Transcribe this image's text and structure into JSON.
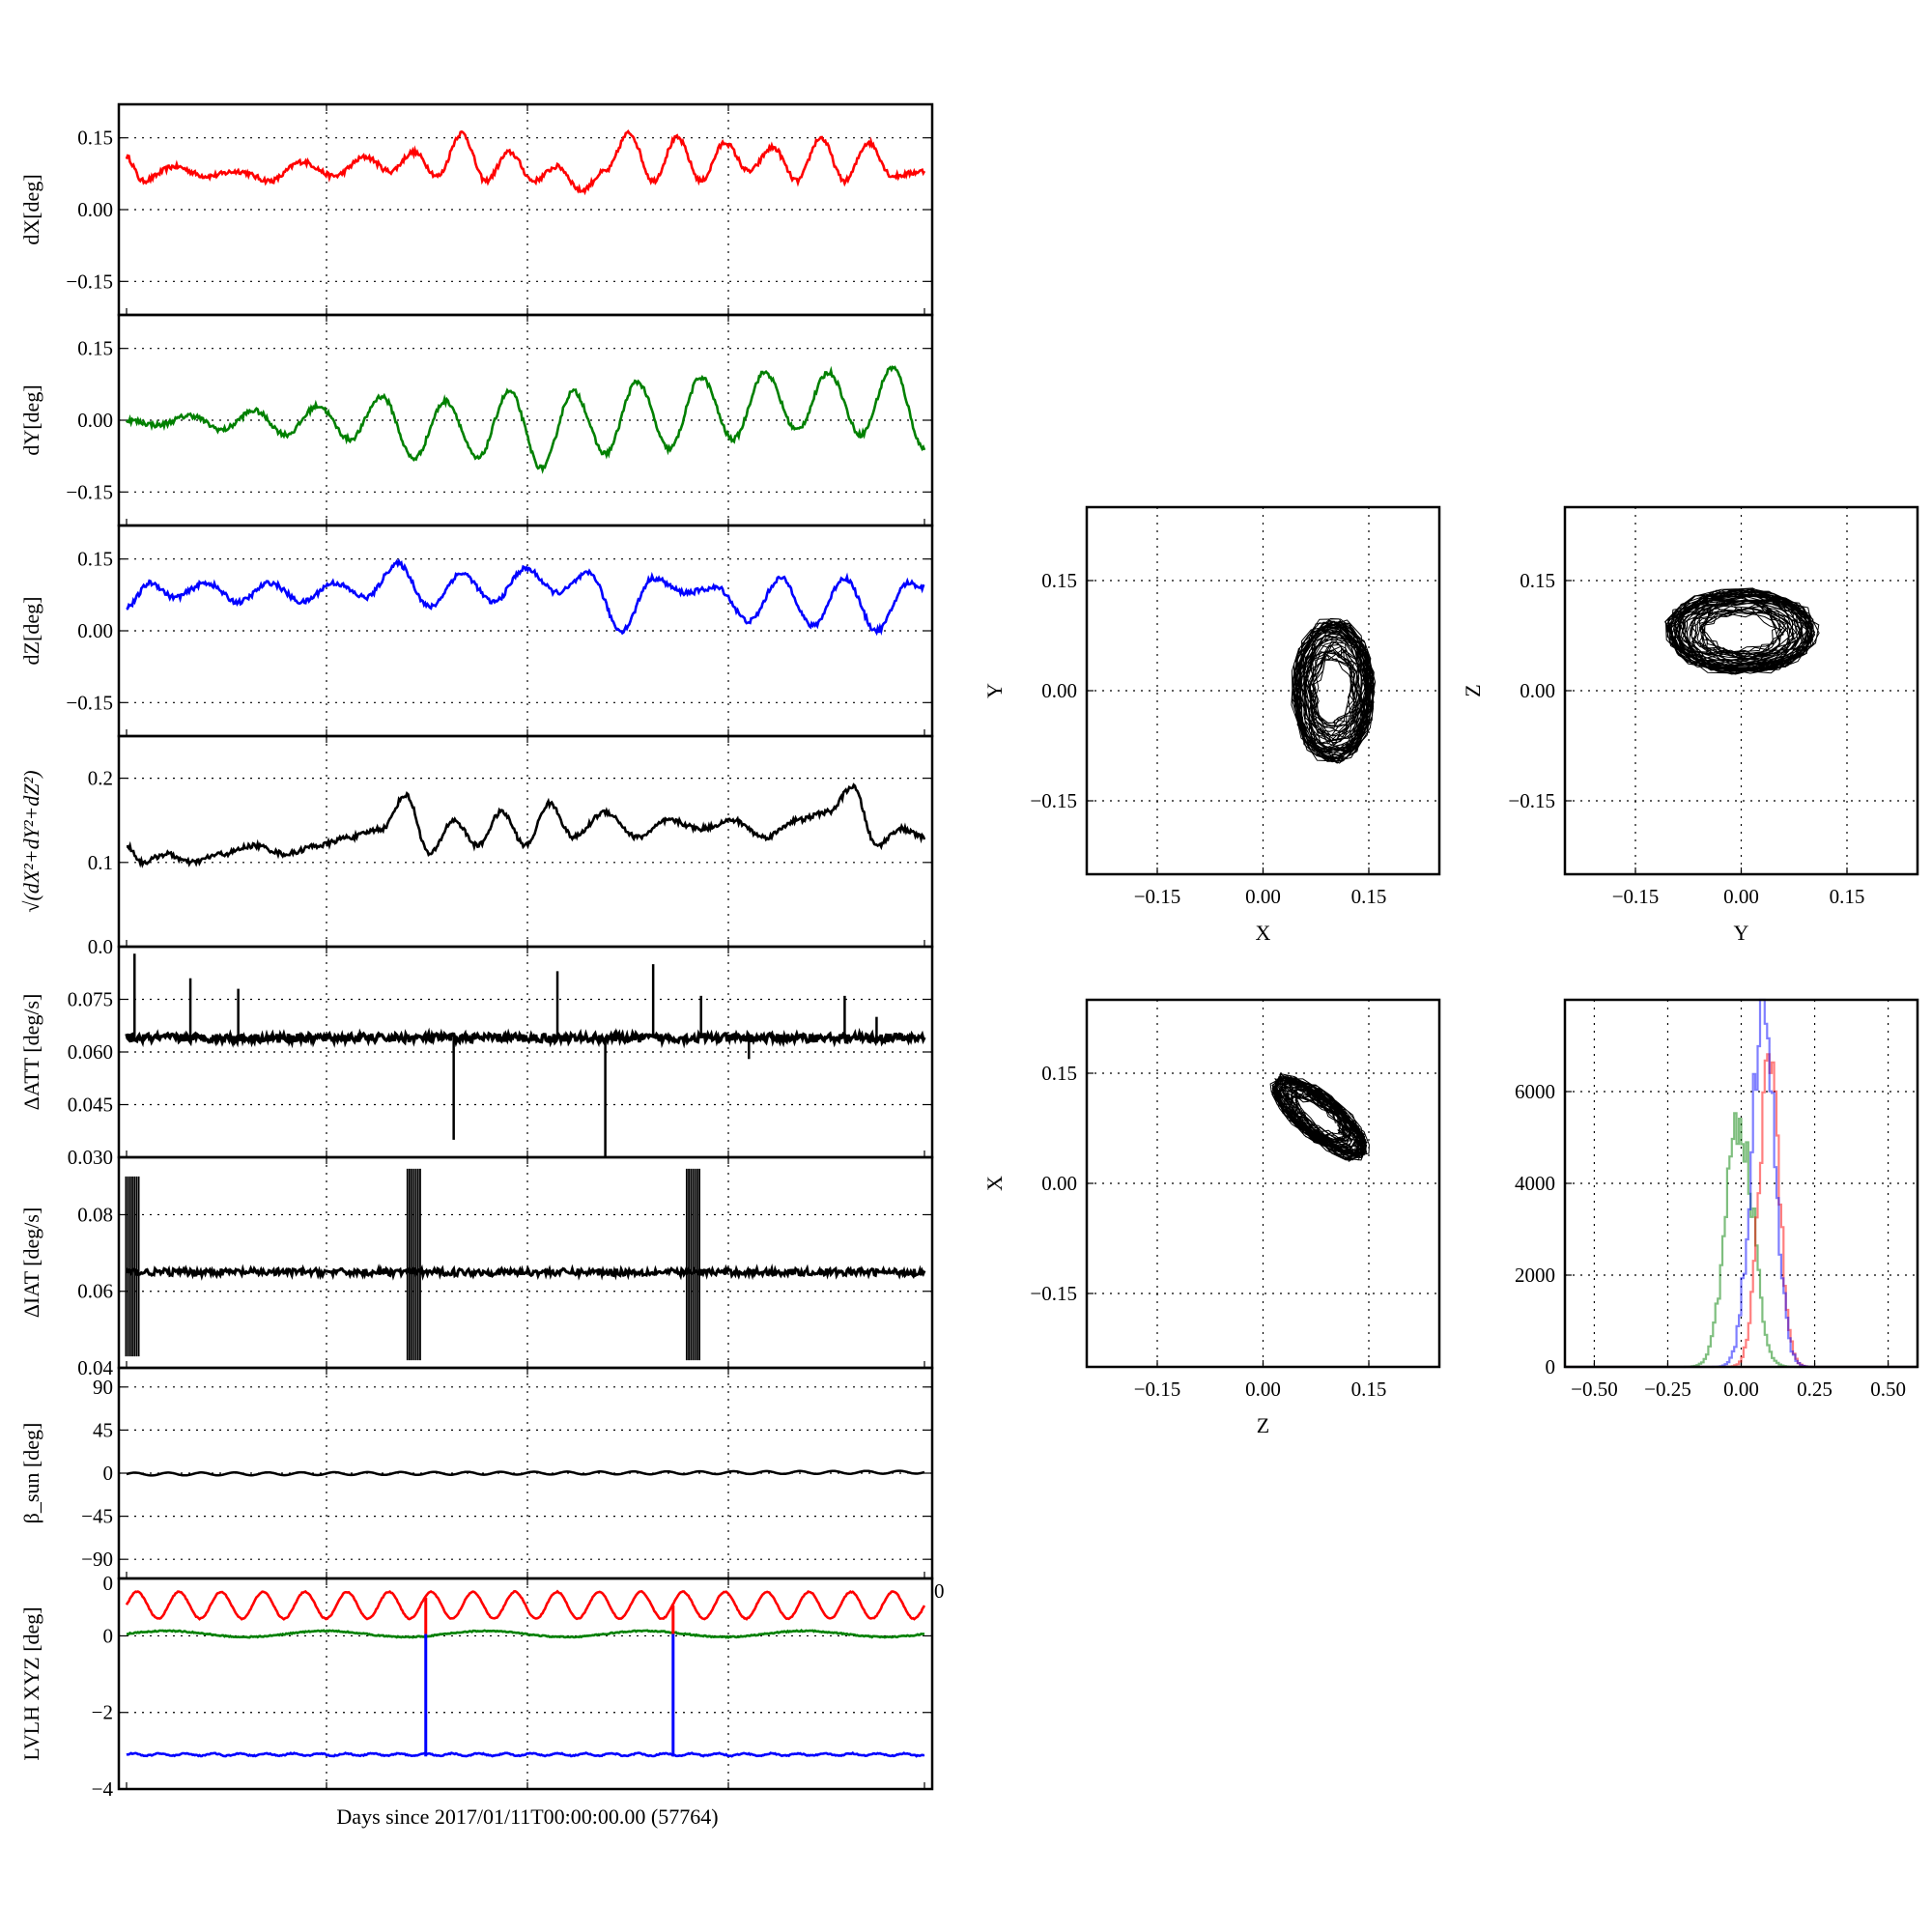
{
  "chart_data": {
    "xlabel": "Days since 2017/01/11T00:00:00.00 (57764)",
    "time_panels": [
      {
        "id": "dX",
        "type": "line",
        "ylabel": "dX[deg]",
        "ylim": [
          -0.22,
          0.22
        ],
        "yticks": [
          "−0.15",
          "0.00",
          "0.15"
        ],
        "ytick_values": [
          -0.15,
          0,
          0.15
        ],
        "grid": true,
        "series": [
          {
            "color": "#ff0000",
            "x": [
              0,
              0.02,
              0.06,
              0.1,
              0.14,
              0.18,
              0.22,
              0.26,
              0.3,
              0.33,
              0.36,
              0.39,
              0.42,
              0.45,
              0.48,
              0.51,
              0.54,
              0.57,
              0.6,
              0.63,
              0.66,
              0.69,
              0.72,
              0.75,
              0.78,
              0.81,
              0.84,
              0.87,
              0.9,
              0.93,
              0.96,
              1.0
            ],
            "y": [
              0.11,
              0.06,
              0.09,
              0.07,
              0.08,
              0.06,
              0.1,
              0.07,
              0.11,
              0.08,
              0.12,
              0.07,
              0.16,
              0.06,
              0.12,
              0.06,
              0.09,
              0.04,
              0.08,
              0.16,
              0.06,
              0.15,
              0.06,
              0.14,
              0.08,
              0.13,
              0.06,
              0.15,
              0.06,
              0.14,
              0.07,
              0.08
            ]
          }
        ]
      },
      {
        "id": "dY",
        "type": "line",
        "ylabel": "dY[deg]",
        "ylim": [
          -0.22,
          0.22
        ],
        "yticks": [
          "−0.15",
          "0.00",
          "0.15"
        ],
        "ytick_values": [
          -0.15,
          0,
          0.15
        ],
        "grid": true,
        "series": [
          {
            "color": "#008000",
            "x": [
              0,
              0.04,
              0.08,
              0.12,
              0.16,
              0.2,
              0.24,
              0.28,
              0.32,
              0.36,
              0.4,
              0.44,
              0.48,
              0.52,
              0.56,
              0.6,
              0.64,
              0.68,
              0.72,
              0.76,
              0.8,
              0.84,
              0.88,
              0.92,
              0.96,
              1.0
            ],
            "y": [
              0.0,
              -0.01,
              0.01,
              -0.02,
              0.02,
              -0.03,
              0.03,
              -0.04,
              0.05,
              -0.08,
              0.04,
              -0.08,
              0.06,
              -0.1,
              0.06,
              -0.07,
              0.08,
              -0.06,
              0.09,
              -0.04,
              0.1,
              -0.02,
              0.1,
              -0.03,
              0.11,
              -0.06
            ]
          }
        ]
      },
      {
        "id": "dZ",
        "type": "line",
        "ylabel": "dZ[deg]",
        "ylim": [
          -0.22,
          0.22
        ],
        "yticks": [
          "−0.15",
          "0.00",
          "0.15"
        ],
        "ytick_values": [
          -0.15,
          0,
          0.15
        ],
        "grid": true,
        "series": [
          {
            "color": "#0000ff",
            "x": [
              0,
              0.03,
              0.06,
              0.1,
              0.14,
              0.18,
              0.22,
              0.26,
              0.3,
              0.34,
              0.38,
              0.42,
              0.46,
              0.5,
              0.54,
              0.58,
              0.62,
              0.66,
              0.7,
              0.74,
              0.78,
              0.82,
              0.86,
              0.9,
              0.94,
              0.98,
              1.0
            ],
            "y": [
              0.05,
              0.1,
              0.07,
              0.1,
              0.06,
              0.1,
              0.06,
              0.1,
              0.07,
              0.14,
              0.05,
              0.12,
              0.06,
              0.13,
              0.08,
              0.12,
              0.0,
              0.11,
              0.08,
              0.09,
              0.02,
              0.11,
              0.01,
              0.11,
              0.0,
              0.1,
              0.09
            ]
          }
        ]
      },
      {
        "id": "mag",
        "type": "line",
        "ylabel": "√(dX²+dY²+dZ²)",
        "ylim": [
          0,
          0.25
        ],
        "yticks": [
          "0.0",
          "0.1",
          "0.2"
        ],
        "ytick_values": [
          0,
          0.1,
          0.2
        ],
        "grid": true,
        "series": [
          {
            "color": "#000000",
            "x": [
              0,
              0.02,
              0.05,
              0.08,
              0.12,
              0.16,
              0.2,
              0.24,
              0.28,
              0.32,
              0.35,
              0.38,
              0.41,
              0.44,
              0.47,
              0.5,
              0.53,
              0.56,
              0.6,
              0.64,
              0.68,
              0.72,
              0.76,
              0.8,
              0.84,
              0.88,
              0.91,
              0.94,
              0.97,
              1.0
            ],
            "y": [
              0.12,
              0.1,
              0.11,
              0.1,
              0.11,
              0.12,
              0.11,
              0.12,
              0.13,
              0.14,
              0.18,
              0.11,
              0.15,
              0.12,
              0.16,
              0.12,
              0.17,
              0.13,
              0.16,
              0.13,
              0.15,
              0.14,
              0.15,
              0.13,
              0.15,
              0.16,
              0.19,
              0.12,
              0.14,
              0.13
            ]
          }
        ]
      },
      {
        "id": "dATT",
        "type": "line",
        "ylabel": "ΔATT [deg/s]",
        "ylim": [
          0.03,
          0.09
        ],
        "yticks": [
          "0.030",
          "0.045",
          "0.060",
          "0.075"
        ],
        "ytick_values": [
          0.03,
          0.045,
          0.06,
          0.075
        ],
        "grid": true,
        "baseline": 0.064,
        "spikes": [
          {
            "x": 0.01,
            "y": 0.088
          },
          {
            "x": 0.08,
            "y": 0.081
          },
          {
            "x": 0.14,
            "y": 0.078
          },
          {
            "x": 0.41,
            "y": 0.035
          },
          {
            "x": 0.54,
            "y": 0.083
          },
          {
            "x": 0.6,
            "y": 0.03
          },
          {
            "x": 0.66,
            "y": 0.085
          },
          {
            "x": 0.72,
            "y": 0.076
          },
          {
            "x": 0.78,
            "y": 0.058
          },
          {
            "x": 0.9,
            "y": 0.076
          },
          {
            "x": 0.94,
            "y": 0.07
          }
        ],
        "series": [
          {
            "color": "#000000"
          }
        ]
      },
      {
        "id": "dIAT",
        "type": "line",
        "ylabel": "ΔIAT [deg/s]",
        "ylim": [
          0.04,
          0.095
        ],
        "yticks": [
          "0.04",
          "0.06",
          "0.08"
        ],
        "ytick_values": [
          0.04,
          0.06,
          0.08
        ],
        "grid": true,
        "baseline": 0.065,
        "bursts": [
          {
            "x": 0.0,
            "low": 0.043,
            "high": 0.09
          },
          {
            "x": 0.36,
            "low": 0.042,
            "high": 0.092
          },
          {
            "x": 0.71,
            "low": 0.042,
            "high": 0.092
          }
        ],
        "series": [
          {
            "color": "#000000"
          }
        ]
      },
      {
        "id": "beta",
        "type": "line",
        "ylabel": "β_sun [deg]",
        "ylim": [
          -110,
          110
        ],
        "yticks": [
          "−90",
          "−45",
          "0",
          "45",
          "90"
        ],
        "ytick_values": [
          -90,
          -45,
          0,
          45,
          90
        ],
        "grid": true,
        "series": [
          {
            "color": "#000000",
            "level": -1,
            "ripple": 1.5
          }
        ]
      },
      {
        "id": "lvlh",
        "type": "line",
        "ylabel": "LVLH XYZ [deg]",
        "ylim": [
          -4,
          1.5
        ],
        "yticks": [
          "−4",
          "−2",
          "0"
        ],
        "ytick_values": [
          -4,
          -2,
          0
        ],
        "grid": true,
        "left_top_label": "0",
        "right_top_label": "0",
        "series": [
          {
            "color": "#ff0000",
            "level": 0.8,
            "ripple": 0.35,
            "cycles": 19
          },
          {
            "color": "#008000",
            "level": 0.05,
            "ripple": 0.08,
            "cycles": 5
          },
          {
            "color": "#0000ff",
            "level": -3.1,
            "ripple": 0.03,
            "cycles": 30
          }
        ],
        "vlines": [
          {
            "x": 0.375,
            "top": 1.0,
            "bottom": -3.15
          },
          {
            "x": 0.685,
            "top": 0.8,
            "bottom": -3.15
          }
        ]
      }
    ],
    "scatter_panels": [
      {
        "id": "XY",
        "type": "scatter",
        "xlabel": "X",
        "ylabel": "Y",
        "xlim": [
          -0.25,
          0.25
        ],
        "ylim": [
          -0.25,
          0.25
        ],
        "ticks": [
          "−0.15",
          "0.00",
          "0.15"
        ],
        "tick_values": [
          -0.15,
          0,
          0.15
        ],
        "cloud": {
          "cx": 0.1,
          "cy": 0.0,
          "rx": 0.055,
          "ry": 0.095,
          "angle": 0
        }
      },
      {
        "id": "YZ",
        "type": "scatter",
        "xlabel": "Y",
        "ylabel": "Z",
        "xlim": [
          -0.25,
          0.25
        ],
        "ylim": [
          -0.25,
          0.25
        ],
        "ticks": [
          "−0.15",
          "0.00",
          "0.15"
        ],
        "tick_values": [
          -0.15,
          0,
          0.15
        ],
        "cloud": {
          "cx": 0.0,
          "cy": 0.08,
          "rx": 0.105,
          "ry": 0.055,
          "angle": 0
        }
      },
      {
        "id": "ZX",
        "type": "scatter",
        "xlabel": "Z",
        "ylabel": "X",
        "xlim": [
          -0.25,
          0.25
        ],
        "ylim": [
          -0.25,
          0.25
        ],
        "ticks": [
          "−0.15",
          "0.00",
          "0.15"
        ],
        "tick_values": [
          -0.15,
          0,
          0.15
        ],
        "cloud": {
          "cx": 0.08,
          "cy": 0.09,
          "rx": 0.08,
          "ry": 0.028,
          "angle": -38
        }
      }
    ],
    "histogram": {
      "type": "bar",
      "xlim": [
        -0.6,
        0.6
      ],
      "ylim": [
        0,
        8000
      ],
      "xticks": [
        "−0.50",
        "−0.25",
        "0.00",
        "0.25",
        "0.50"
      ],
      "xtick_values": [
        -0.5,
        -0.25,
        0,
        0.25,
        0.5
      ],
      "yticks": [
        "0",
        "2000",
        "4000",
        "6000"
      ],
      "ytick_values": [
        0,
        2000,
        4000,
        6000
      ],
      "series": [
        {
          "color": "#008000",
          "center": -0.01,
          "sigma": 0.045,
          "peak": 5600
        },
        {
          "color": "#ff0000",
          "center": 0.09,
          "sigma": 0.035,
          "peak": 6400
        },
        {
          "color": "#0000ff",
          "center": 0.07,
          "sigma": 0.04,
          "peak": 7800
        }
      ]
    }
  }
}
